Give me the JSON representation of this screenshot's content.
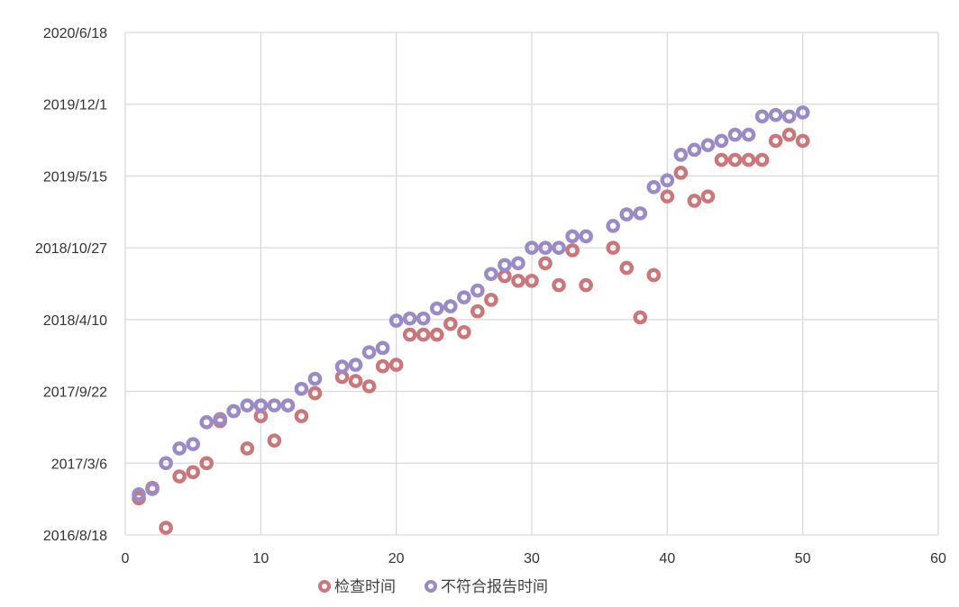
{
  "chart_data": {
    "type": "scatter",
    "title": "",
    "xlabel": "",
    "ylabel": "",
    "xlim": [
      0,
      60
    ],
    "x_ticks": [
      0,
      10,
      20,
      30,
      40,
      50,
      60
    ],
    "ylim": [
      "2016-08-18",
      "2020-06-18"
    ],
    "y_ticks": [
      "2016/8/18",
      "2017/3/6",
      "2017/9/22",
      "2018/4/10",
      "2018/10/27",
      "2019/5/15",
      "2019/12/1",
      "2020/6/18"
    ],
    "y_tick_dates": [
      "2016-08-18",
      "2017-03-06",
      "2017-09-22",
      "2018-04-10",
      "2018-10-27",
      "2019-05-15",
      "2019-12-01",
      "2020-06-18"
    ],
    "grid": true,
    "legend_position": "bottom",
    "series": [
      {
        "name": "检查时间",
        "color": "#c9777b",
        "points": [
          [
            1,
            "2016-11-28"
          ],
          [
            2,
            "2016-12-27"
          ],
          [
            3,
            "2016-09-07"
          ],
          [
            4,
            "2017-01-28"
          ],
          [
            5,
            "2017-02-09"
          ],
          [
            6,
            "2017-03-06"
          ],
          [
            7,
            "2017-07-01"
          ],
          [
            8,
            "2017-07-29"
          ],
          [
            9,
            "2017-04-16"
          ],
          [
            10,
            "2017-07-15"
          ],
          [
            11,
            "2017-05-08"
          ],
          [
            12,
            "2017-08-14"
          ],
          [
            13,
            "2017-07-15"
          ],
          [
            14,
            "2017-09-17"
          ],
          [
            16,
            "2017-11-01"
          ],
          [
            17,
            "2017-10-21"
          ],
          [
            18,
            "2017-10-06"
          ],
          [
            19,
            "2017-12-01"
          ],
          [
            20,
            "2017-12-05"
          ],
          [
            21,
            "2018-02-27"
          ],
          [
            22,
            "2018-02-27"
          ],
          [
            23,
            "2018-02-27"
          ],
          [
            24,
            "2018-03-29"
          ],
          [
            25,
            "2018-03-06"
          ],
          [
            26,
            "2018-05-03"
          ],
          [
            27,
            "2018-06-04"
          ],
          [
            28,
            "2018-08-09"
          ],
          [
            29,
            "2018-07-27"
          ],
          [
            30,
            "2018-07-27"
          ],
          [
            31,
            "2018-09-14"
          ],
          [
            32,
            "2018-07-15"
          ],
          [
            33,
            "2018-10-20"
          ],
          [
            34,
            "2018-07-15"
          ],
          [
            36,
            "2018-10-27"
          ],
          [
            37,
            "2018-09-01"
          ],
          [
            38,
            "2018-04-16"
          ],
          [
            39,
            "2018-08-12"
          ],
          [
            40,
            "2019-03-19"
          ],
          [
            41,
            "2019-05-24"
          ],
          [
            42,
            "2019-03-07"
          ],
          [
            43,
            "2019-03-19"
          ],
          [
            44,
            "2019-06-29"
          ],
          [
            45,
            "2019-06-29"
          ],
          [
            46,
            "2019-06-29"
          ],
          [
            47,
            "2019-06-29"
          ],
          [
            48,
            "2019-08-21"
          ],
          [
            49,
            "2019-09-07"
          ],
          [
            50,
            "2019-08-21"
          ]
        ]
      },
      {
        "name": "不符合报告时间",
        "color": "#9a8ac7",
        "points": [
          [
            1,
            "2016-12-09"
          ],
          [
            2,
            "2016-12-24"
          ],
          [
            3,
            "2017-03-06"
          ],
          [
            4,
            "2017-04-16"
          ],
          [
            5,
            "2017-04-28"
          ],
          [
            6,
            "2017-06-28"
          ],
          [
            7,
            "2017-07-07"
          ],
          [
            8,
            "2017-07-29"
          ],
          [
            9,
            "2017-08-14"
          ],
          [
            10,
            "2017-08-14"
          ],
          [
            11,
            "2017-08-14"
          ],
          [
            12,
            "2017-08-14"
          ],
          [
            13,
            "2017-09-29"
          ],
          [
            14,
            "2017-10-27"
          ],
          [
            16,
            "2017-11-30"
          ],
          [
            17,
            "2017-12-05"
          ],
          [
            18,
            "2018-01-09"
          ],
          [
            19,
            "2018-01-21"
          ],
          [
            20,
            "2018-04-07"
          ],
          [
            21,
            "2018-04-13"
          ],
          [
            22,
            "2018-04-13"
          ],
          [
            23,
            "2018-05-11"
          ],
          [
            24,
            "2018-05-17"
          ],
          [
            25,
            "2018-06-11"
          ],
          [
            26,
            "2018-06-30"
          ],
          [
            27,
            "2018-08-15"
          ],
          [
            28,
            "2018-09-09"
          ],
          [
            29,
            "2018-09-14"
          ],
          [
            30,
            "2018-10-27"
          ],
          [
            31,
            "2018-10-27"
          ],
          [
            32,
            "2018-10-27"
          ],
          [
            33,
            "2018-11-28"
          ],
          [
            34,
            "2018-11-28"
          ],
          [
            36,
            "2018-12-27"
          ],
          [
            37,
            "2019-01-28"
          ],
          [
            38,
            "2019-01-31"
          ],
          [
            39,
            "2019-04-14"
          ],
          [
            40,
            "2019-05-03"
          ],
          [
            41,
            "2019-07-13"
          ],
          [
            42,
            "2019-07-27"
          ],
          [
            43,
            "2019-08-09"
          ],
          [
            44,
            "2019-08-21"
          ],
          [
            45,
            "2019-09-07"
          ],
          [
            46,
            "2019-09-07"
          ],
          [
            47,
            "2019-10-28"
          ],
          [
            48,
            "2019-11-01"
          ],
          [
            49,
            "2019-10-28"
          ],
          [
            50,
            "2019-11-08"
          ]
        ]
      }
    ]
  }
}
